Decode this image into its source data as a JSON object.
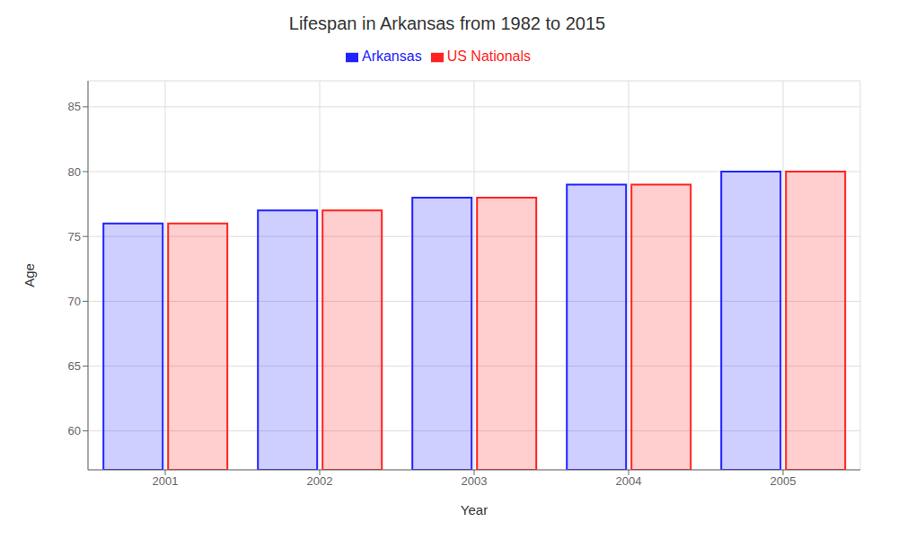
{
  "chart_data": {
    "type": "bar",
    "title": "Lifespan in Arkansas from 1982 to 2015",
    "xlabel": "Year",
    "ylabel": "Age",
    "categories": [
      "2001",
      "2002",
      "2003",
      "2004",
      "2005"
    ],
    "series": [
      {
        "name": "Arkansas",
        "color": "#2222ff",
        "values": [
          76,
          77,
          78,
          79,
          80
        ]
      },
      {
        "name": "US Nationals",
        "color": "#ff2222",
        "values": [
          76,
          77,
          78,
          79,
          80
        ]
      }
    ],
    "ylim": [
      57,
      87
    ],
    "yticks": [
      60,
      65,
      70,
      75,
      80,
      85
    ],
    "grid": true,
    "legend": "top"
  }
}
